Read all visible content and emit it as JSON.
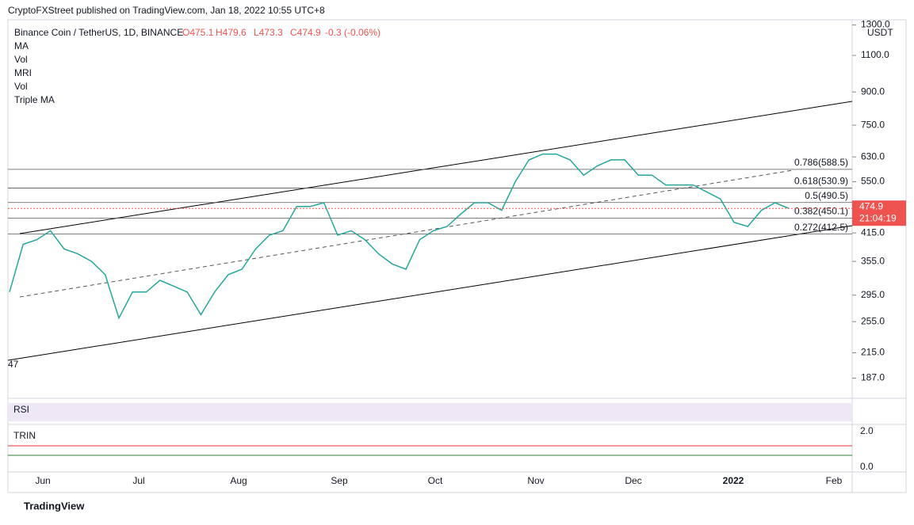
{
  "header": {
    "published": "CryptoFXStreet published on TradingView.com, Jan 18, 2022 10:55 UTC+8"
  },
  "legend": {
    "symbol": "Binance Coin / TetherUS, 1D, BINANCE",
    "open": "O475.1",
    "high": "H479.6",
    "low": "L473.3",
    "close": "C474.9",
    "change": "-0.3 (-0.06%)",
    "indicators": [
      "MA",
      "Vol",
      "MRI",
      "Vol",
      "Triple MA"
    ]
  },
  "price_axis": {
    "unit": "USDT",
    "log": true,
    "ticks": [
      {
        "value": 1300,
        "label": "1300.0"
      },
      {
        "value": 1100,
        "label": "1100.0"
      },
      {
        "value": 900,
        "label": "900.0"
      },
      {
        "value": 750,
        "label": "750.0"
      },
      {
        "value": 630,
        "label": "630.0"
      },
      {
        "value": 550,
        "label": "550.0"
      },
      {
        "value": 415,
        "label": "415.0"
      },
      {
        "value": 355,
        "label": "355.0"
      },
      {
        "value": 295,
        "label": "295.0"
      },
      {
        "value": 255,
        "label": "255.0"
      },
      {
        "value": 215,
        "label": "215.0"
      },
      {
        "value": 187,
        "label": "187.0"
      }
    ],
    "last_price": {
      "value": 474.9,
      "label": "474.9"
    },
    "countdown": "21:04:19"
  },
  "fib_levels": [
    {
      "label": "0.786(588.5)",
      "price": 588.5
    },
    {
      "label": "0.618(530.9)",
      "price": 530.9
    },
    {
      "label": "0.5(490.5)",
      "price": 490.5
    },
    {
      "label": "0.382(450.1)",
      "price": 450.1
    },
    {
      "label": "0.272(412.5)",
      "price": 412.5
    }
  ],
  "price_closes": [
    300,
    390,
    400,
    420,
    380,
    370,
    355,
    330,
    260,
    300,
    300,
    320,
    310,
    300,
    265,
    300,
    330,
    340,
    380,
    410,
    420,
    480,
    480,
    490,
    410,
    420,
    400,
    370,
    350,
    340,
    400,
    420,
    430,
    460,
    490,
    490,
    470,
    550,
    620,
    640,
    640,
    620,
    570,
    600,
    620,
    620,
    570,
    570,
    540,
    540,
    540,
    520,
    500,
    440,
    430,
    470,
    490,
    474.9
  ],
  "left_label": "47",
  "panes": {
    "rsi": "RSI",
    "trin": "TRIN",
    "trin_ticks": [
      "2.0",
      "0.0"
    ]
  },
  "time_axis": [
    "Jun",
    "Jul",
    "Aug",
    "Sep",
    "Oct",
    "Nov",
    "Dec",
    "2022",
    "Feb"
  ],
  "footer": "TradingView"
}
